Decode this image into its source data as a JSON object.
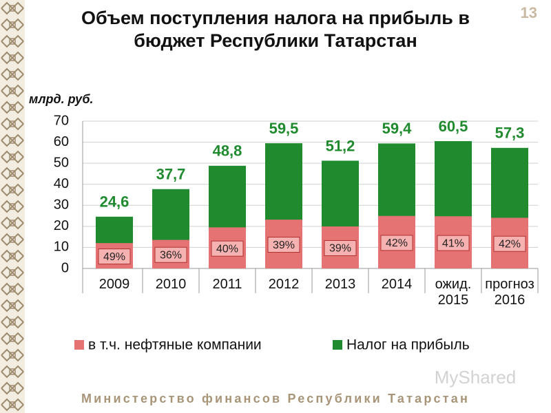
{
  "slide_number": "13",
  "footer": "Министерство финансов Республики Татарстан",
  "watermark": "MyShared",
  "chart_data": {
    "type": "bar",
    "title": "Объем поступления налога на прибыль в бюджет Республики Татарстан",
    "y_label": "млрд. руб.",
    "categories": [
      "2009",
      "2010",
      "2011",
      "2012",
      "2013",
      "2014",
      "ожид. 2015",
      "прогноз 2016"
    ],
    "series": [
      {
        "name": "Налог на прибыль",
        "color": "#1f8a2e",
        "values": [
          24.6,
          37.7,
          48.8,
          59.5,
          51.2,
          59.4,
          60.5,
          57.3
        ],
        "value_labels": [
          "24,6",
          "37,7",
          "48,8",
          "59,5",
          "51,2",
          "59,4",
          "60,5",
          "57,3"
        ]
      },
      {
        "name": "в т.ч. нефтяные компании",
        "color": "#e57373",
        "values": [
          12.05,
          13.57,
          19.52,
          23.2,
          19.97,
          24.95,
          24.8,
          24.07
        ],
        "share_labels": [
          "49%",
          "36%",
          "40%",
          "39%",
          "39%",
          "42%",
          "41%",
          "42%"
        ]
      }
    ],
    "ylim": [
      0,
      70
    ],
    "yticks": [
      0,
      10,
      20,
      30,
      40,
      50,
      60,
      70
    ],
    "grid": true,
    "legend": "bottom"
  }
}
